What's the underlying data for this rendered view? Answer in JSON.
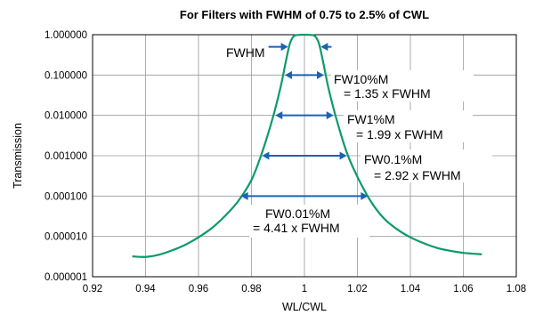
{
  "chart_data": {
    "type": "line",
    "title": "For Filters with FWHM of 0.75 to 2.5% of CWL",
    "xlabel": "WL/CWL",
    "ylabel": "Transmission",
    "xlim": [
      0.92,
      1.08
    ],
    "ylim": [
      1e-06,
      1.0
    ],
    "yscale": "log",
    "grid": true,
    "x_ticks": [
      "0.92",
      "0.94",
      "0.96",
      "0.98",
      "1",
      "1.02",
      "1.04",
      "1.06",
      "1.08"
    ],
    "y_ticks": [
      "1.000000",
      "0.100000",
      "0.010000",
      "0.001000",
      "0.000100",
      "0.000010",
      "0.000001"
    ],
    "series": [
      {
        "color": "#0a9a6b",
        "x": [
          0.935,
          0.94,
          0.945,
          0.95,
          0.955,
          0.96,
          0.965,
          0.97,
          0.975,
          0.98,
          0.984,
          0.988,
          0.991,
          0.993,
          0.9945,
          0.996,
          0.998,
          1.0,
          1.002,
          1.004,
          1.0055,
          1.007,
          1.009,
          1.012,
          1.016,
          1.02,
          1.025,
          1.03,
          1.035,
          1.04,
          1.045,
          1.05,
          1.055,
          1.06,
          1.067
        ],
        "y": [
          3.2e-06,
          3.1e-06,
          3.5e-06,
          4.5e-06,
          6.2e-06,
          9.5e-06,
          1.6e-05,
          3.2e-05,
          7.5e-05,
          0.00025,
          0.0012,
          0.0085,
          0.05,
          0.22,
          0.6,
          0.92,
          0.99,
          1.0,
          0.99,
          0.92,
          0.6,
          0.22,
          0.05,
          0.0085,
          0.0012,
          0.0003,
          7.5e-05,
          2.8e-05,
          1.5e-05,
          9.5e-06,
          6.8e-06,
          5.2e-06,
          4.4e-06,
          3.9e-06,
          3.6e-06
        ]
      }
    ],
    "annotations": [
      {
        "label": "FWHM",
        "text": "FWHM",
        "level": 0.5,
        "x_left": 0.9945,
        "x_right": 1.0055
      },
      {
        "label": "FW10%M",
        "text": "= 1.35 x FWHM",
        "level": 0.1,
        "x_left": 0.9926,
        "x_right": 1.0074
      },
      {
        "label": "FW1%M",
        "text": "= 1.99 x FWHM",
        "level": 0.01,
        "x_left": 0.989,
        "x_right": 1.011
      },
      {
        "label": "FW0.1%M",
        "text": "= 2.92 x FWHM",
        "level": 0.001,
        "x_left": 0.984,
        "x_right": 1.016
      },
      {
        "label": "FW0.01%M",
        "text": "= 4.41 x FWHM",
        "level": 0.0001,
        "x_left": 0.976,
        "x_right": 1.024
      }
    ]
  }
}
